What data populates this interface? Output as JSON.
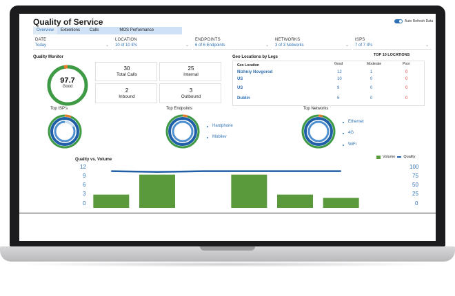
{
  "app": {
    "title": "Quality of Service",
    "auto_refresh_label": "Auto Refresh Data"
  },
  "tabs": [
    {
      "label": "Overview",
      "active": true
    },
    {
      "label": "Extentions",
      "active": false
    },
    {
      "label": "Calls",
      "active": false
    },
    {
      "label": "MOS Performance",
      "active": false
    }
  ],
  "filters": [
    {
      "label": "DATE",
      "value": "Today"
    },
    {
      "label": "LOCATION",
      "value": "10 of 10 IPs"
    },
    {
      "label": "ENDPOINTS",
      "value": "6 of 6 Endpoints"
    },
    {
      "label": "NETWORKS",
      "value": "3 of 3 Networks"
    },
    {
      "label": "ISPS",
      "value": "7 of 7 IPs"
    }
  ],
  "quality_monitor": {
    "title": "Quality Monitor",
    "score": "97.7",
    "score_label": "Good",
    "score_fraction": 0.977,
    "stats": [
      {
        "value": "30",
        "label": "Total Calls"
      },
      {
        "value": "25",
        "label": "Internal"
      },
      {
        "value": "2",
        "label": "Inbound"
      },
      {
        "value": "3",
        "label": "Outbound"
      }
    ]
  },
  "geo": {
    "title": "Geo Locations by Legs",
    "top_label": "TOP 10 LOCATIONS",
    "col_location": "Geo Location",
    "col_good": "Good",
    "col_moderate": "Moderate",
    "col_poor": "Poor",
    "rows": [
      {
        "location": "Nizhniy Novgorod",
        "good": "12",
        "moderate": "1",
        "poor": "0"
      },
      {
        "location": "US",
        "good": "10",
        "moderate": "0",
        "poor": "0"
      },
      {
        "location": "US",
        "good": "9",
        "moderate": "0",
        "poor": "0"
      },
      {
        "location": "Dublin",
        "good": "5",
        "moderate": "0",
        "poor": "0"
      }
    ]
  },
  "top_isps": {
    "title": "Top ISP's"
  },
  "top_endpoints": {
    "title": "Top Endpoints",
    "items": [
      "Hardphone",
      "Mobilev"
    ]
  },
  "top_networks": {
    "title": "Top Networks",
    "items": [
      "Ethernet",
      "4G",
      "WiFi"
    ]
  },
  "colors": {
    "good": "#3f9a45",
    "primary": "#1f5fa8",
    "bar": "#5b9a3c",
    "poor": "#e87a2a"
  },
  "chart_data": {
    "type": "bar",
    "title": "Quality vs. Volume",
    "series": [
      {
        "name": "Volume",
        "values": [
          4,
          10,
          0,
          10,
          4,
          3
        ]
      },
      {
        "name": "Quality",
        "values": [
          92,
          90,
          92,
          92,
          92,
          92
        ]
      }
    ],
    "left_ticks": [
      "12",
      "9",
      "6",
      "3",
      "0"
    ],
    "right_ticks": [
      "100",
      "75",
      "50",
      "25",
      "0"
    ],
    "left_ylim": [
      0,
      12
    ],
    "right_ylim": [
      0,
      100
    ],
    "legend_position": "top-right"
  }
}
